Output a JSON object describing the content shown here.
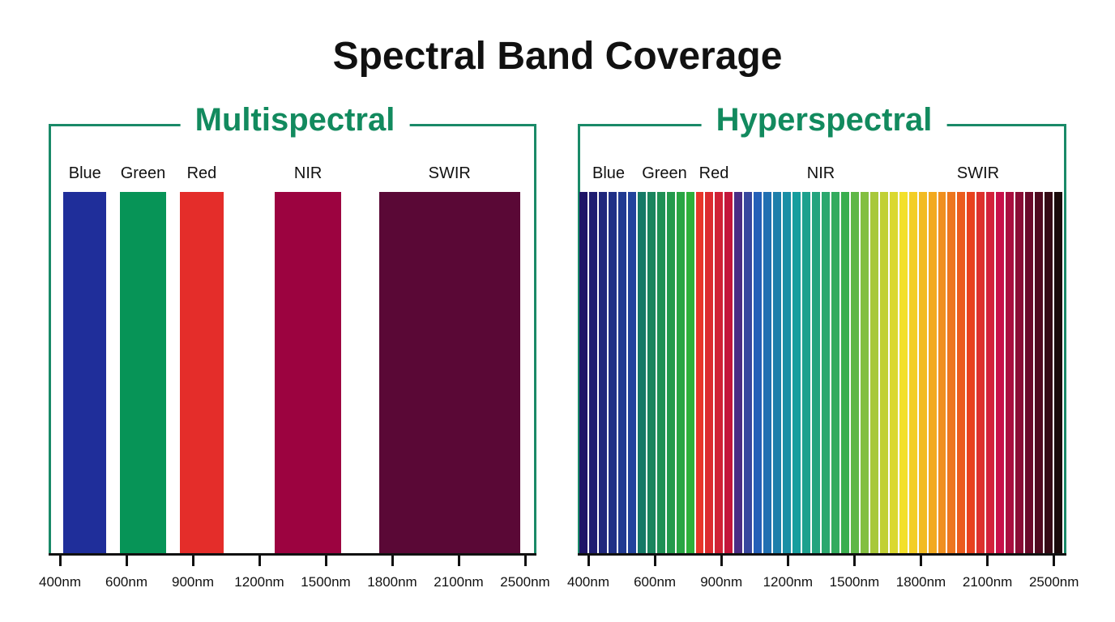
{
  "title": "Spectral Band Coverage",
  "chart_data": [
    {
      "type": "bar",
      "title": "Multispectral",
      "tick_labels": [
        "400nm",
        "600nm",
        "900nm",
        "1200nm",
        "1500nm",
        "1800nm",
        "2100nm",
        "2500nm"
      ],
      "tick_values_nm": [
        400,
        600,
        900,
        1200,
        1500,
        1800,
        2100,
        2500
      ],
      "bands": [
        {
          "name": "Blue",
          "start_nm": 410,
          "end_nm": 540,
          "color": "#1f2e9a"
        },
        {
          "name": "Green",
          "start_nm": 580,
          "end_nm": 780,
          "color": "#079457"
        },
        {
          "name": "Red",
          "start_nm": 840,
          "end_nm": 1040,
          "color": "#e42d2a"
        },
        {
          "name": "NIR",
          "start_nm": 1270,
          "end_nm": 1570,
          "color": "#9c0340"
        },
        {
          "name": "SWIR",
          "start_nm": 1740,
          "end_nm": 2470,
          "color": "#5a0836"
        }
      ],
      "frame_color": "#1a8a68"
    },
    {
      "type": "bar",
      "title": "Hyperspectral",
      "tick_labels": [
        "400nm",
        "600nm",
        "900nm",
        "1200nm",
        "1500nm",
        "1800nm",
        "2100nm",
        "2500nm"
      ],
      "tick_values_nm": [
        400,
        600,
        900,
        1200,
        1500,
        1800,
        2100,
        2500
      ],
      "region_labels": [
        "Blue",
        "Green",
        "Red",
        "NIR",
        "SWIR"
      ],
      "band_count": 50,
      "band_color_stops": [
        {
          "band": 0,
          "color": "#1e1466"
        },
        {
          "band": 5,
          "color": "#22439c"
        },
        {
          "band": 6,
          "color": "#157a66"
        },
        {
          "band": 11,
          "color": "#2eb03a"
        },
        {
          "band": 12,
          "color": "#e8362a"
        },
        {
          "band": 15,
          "color": "#c4163a"
        },
        {
          "band": 16,
          "color": "#4a2d84"
        },
        {
          "band": 18,
          "color": "#2560b8"
        },
        {
          "band": 22,
          "color": "#169e9e"
        },
        {
          "band": 27,
          "color": "#3aae4e"
        },
        {
          "band": 30,
          "color": "#a8c83a"
        },
        {
          "band": 33,
          "color": "#f3e02a"
        },
        {
          "band": 36,
          "color": "#f2a91f"
        },
        {
          "band": 40,
          "color": "#e8421e"
        },
        {
          "band": 43,
          "color": "#c8104a"
        },
        {
          "band": 46,
          "color": "#6a0a2a"
        },
        {
          "band": 49,
          "color": "#1a0a0a"
        }
      ],
      "frame_color": "#1a8a68"
    }
  ]
}
